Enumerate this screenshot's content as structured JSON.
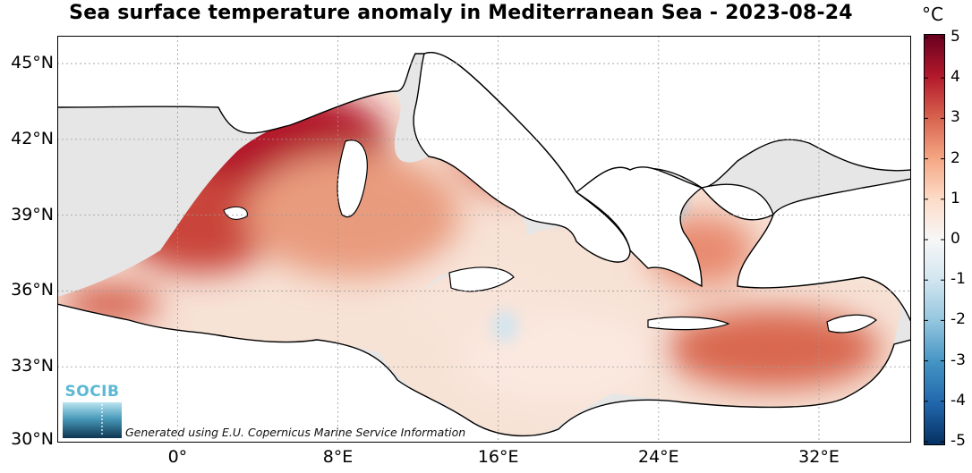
{
  "title": "Sea surface temperature anomaly in Mediterranean Sea - 2023-08-24",
  "unit": "°C",
  "lat_ticks": [
    {
      "value": 45,
      "label": "45°N"
    },
    {
      "value": 42,
      "label": "42°N"
    },
    {
      "value": 39,
      "label": "39°N"
    },
    {
      "value": 36,
      "label": "36°N"
    },
    {
      "value": 33,
      "label": "33°N"
    },
    {
      "value": 30,
      "label": "30°N"
    }
  ],
  "lon_ticks": [
    {
      "value": 0,
      "label": "0°"
    },
    {
      "value": 8,
      "label": "8°E"
    },
    {
      "value": 16,
      "label": "16°E"
    },
    {
      "value": 24,
      "label": "24°E"
    },
    {
      "value": 32,
      "label": "32°E"
    }
  ],
  "colorbar": {
    "ticks": [
      "5",
      "4",
      "3",
      "2",
      "1",
      "0",
      "-1",
      "-2",
      "-3",
      "-4",
      "-5"
    ],
    "range": [
      -5,
      5
    ],
    "colors": [
      "#053061",
      "#2166ac",
      "#4393c3",
      "#92c5de",
      "#d1e5f0",
      "#f7f7f7",
      "#fddbc7",
      "#f4a582",
      "#d6604d",
      "#b2182b",
      "#67001f"
    ]
  },
  "logo": {
    "text": "SOCIB"
  },
  "credit": "Generated using E.U. Copernicus Marine Service Information",
  "colors": {
    "sea_bg": "#e6e6e6",
    "land": "#ffffff",
    "coast": "#000000",
    "grid": "#bdbdbd"
  }
}
